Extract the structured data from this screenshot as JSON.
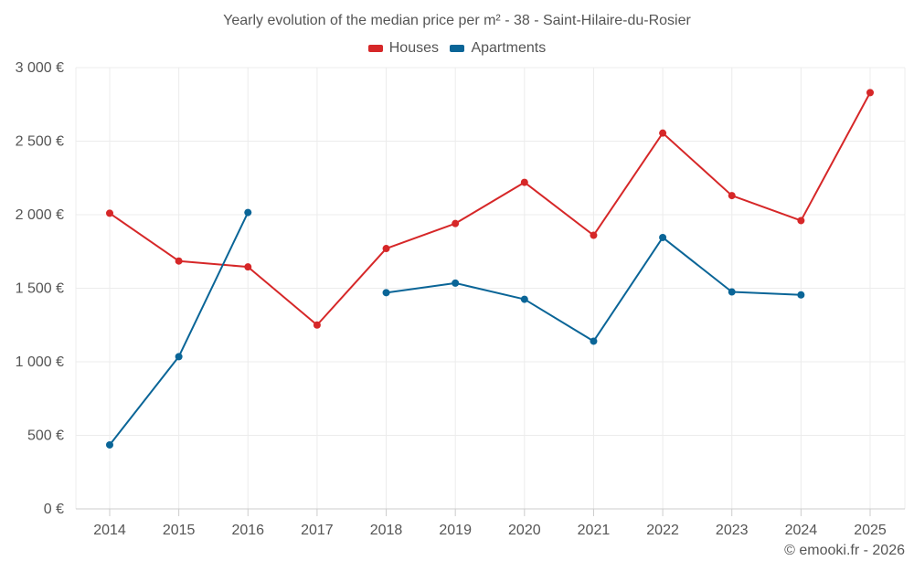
{
  "chart_data": {
    "type": "line",
    "title": "Yearly evolution of the median price per m² - 38 - Saint-Hilaire-du-Rosier",
    "categories": [
      "2014",
      "2015",
      "2016",
      "2017",
      "2018",
      "2019",
      "2020",
      "2021",
      "2022",
      "2023",
      "2024",
      "2025"
    ],
    "y_ticks": [
      0,
      500,
      1000,
      1500,
      2000,
      2500,
      3000
    ],
    "y_tick_labels": [
      "0 €",
      "500 €",
      "1 000 €",
      "1 500 €",
      "2 000 €",
      "2 500 €",
      "3 000 €"
    ],
    "ylim": [
      0,
      3000
    ],
    "grid": true,
    "legend_position": "top-center",
    "series": [
      {
        "name": "Houses",
        "color": "#d62728",
        "values": [
          2010,
          1685,
          1645,
          1250,
          1770,
          1940,
          2220,
          1860,
          2555,
          2130,
          1960,
          2830
        ]
      },
      {
        "name": "Apartments",
        "color": "#0a6597",
        "values": [
          435,
          1035,
          2015,
          null,
          1470,
          1535,
          1425,
          1140,
          1845,
          1475,
          1455,
          null
        ]
      }
    ]
  },
  "credit": "© emooki.fr - 2026"
}
